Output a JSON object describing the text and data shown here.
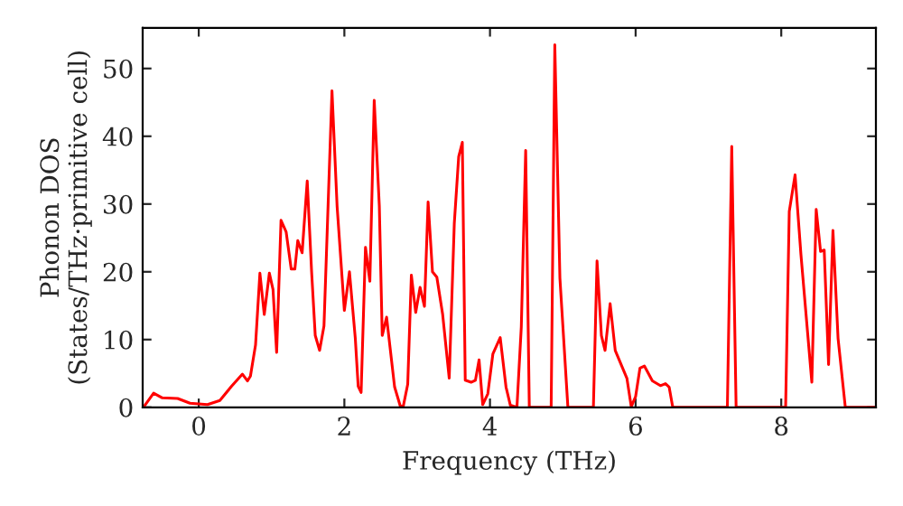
{
  "chart_data": {
    "type": "line",
    "xlabel": "Frequency (THz)",
    "ylabel": "Phonon DOS\n(States/THz·primitive cell)",
    "xlim": [
      -0.77,
      9.3
    ],
    "ylim": [
      0,
      56
    ],
    "xticks": [
      0,
      2,
      4,
      6,
      8
    ],
    "yticks": [
      0,
      10,
      20,
      30,
      40,
      50
    ],
    "grid": false,
    "legend": false,
    "series": [
      {
        "color": "#ff0000",
        "x": [
          -0.74,
          -0.62,
          -0.5,
          -0.29,
          -0.12,
          0.12,
          0.29,
          0.45,
          0.6,
          0.67,
          0.71,
          0.78,
          0.84,
          0.9,
          0.97,
          1.02,
          1.07,
          1.13,
          1.2,
          1.27,
          1.32,
          1.36,
          1.42,
          1.49,
          1.55,
          1.6,
          1.66,
          1.72,
          1.83,
          1.9,
          2.0,
          2.07,
          2.15,
          2.19,
          2.23,
          2.29,
          2.35,
          2.41,
          2.48,
          2.52,
          2.58,
          2.69,
          2.77,
          2.81,
          2.87,
          2.92,
          2.98,
          3.04,
          3.1,
          3.15,
          3.21,
          3.27,
          3.35,
          3.44,
          3.51,
          3.57,
          3.62,
          3.66,
          3.74,
          3.8,
          3.85,
          3.9,
          3.97,
          4.04,
          4.14,
          4.22,
          4.28,
          4.37,
          4.43,
          4.49,
          4.54,
          4.84,
          4.89,
          4.96,
          5.07,
          5.42,
          5.47,
          5.53,
          5.58,
          5.65,
          5.72,
          5.88,
          5.94,
          6.0,
          6.06,
          6.12,
          6.23,
          6.34,
          6.41,
          6.46,
          6.51,
          7.26,
          7.32,
          7.38,
          8.06,
          8.11,
          8.19,
          8.27,
          8.42,
          8.48,
          8.54,
          8.59,
          8.65,
          8.71,
          8.78,
          8.88,
          9.3
        ],
        "values": [
          0.3,
          2.1,
          1.4,
          1.3,
          0.6,
          0.4,
          1.0,
          3.1,
          4.9,
          3.9,
          4.6,
          9.2,
          19.8,
          13.7,
          19.8,
          17.4,
          8.1,
          27.6,
          25.9,
          20.4,
          20.4,
          24.6,
          22.8,
          33.4,
          20,
          10.6,
          8.4,
          12,
          46.7,
          29.7,
          14.3,
          20,
          10.2,
          3.1,
          2.2,
          23.6,
          18.6,
          45.3,
          29.7,
          10.6,
          13.3,
          3.0,
          0.1,
          0.2,
          3.4,
          19.5,
          14,
          17.7,
          14.9,
          30.3,
          20,
          19.2,
          13.7,
          4.3,
          27.2,
          37,
          39.1,
          4.0,
          3.7,
          4.0,
          7.0,
          0.4,
          2.0,
          7.9,
          10.3,
          3.0,
          0.3,
          0,
          11.9,
          37.9,
          0,
          0,
          53.5,
          19.1,
          0,
          0,
          21.6,
          10.6,
          8.4,
          15.3,
          8.4,
          4.3,
          0.1,
          1.6,
          5.8,
          6.1,
          3.9,
          3.2,
          3.5,
          3.0,
          0,
          0,
          38.5,
          0,
          0,
          28.9,
          34.3,
          22.6,
          3.7,
          29.2,
          23,
          23.2,
          6.3,
          26.1,
          10.2,
          0,
          0
        ]
      }
    ]
  }
}
